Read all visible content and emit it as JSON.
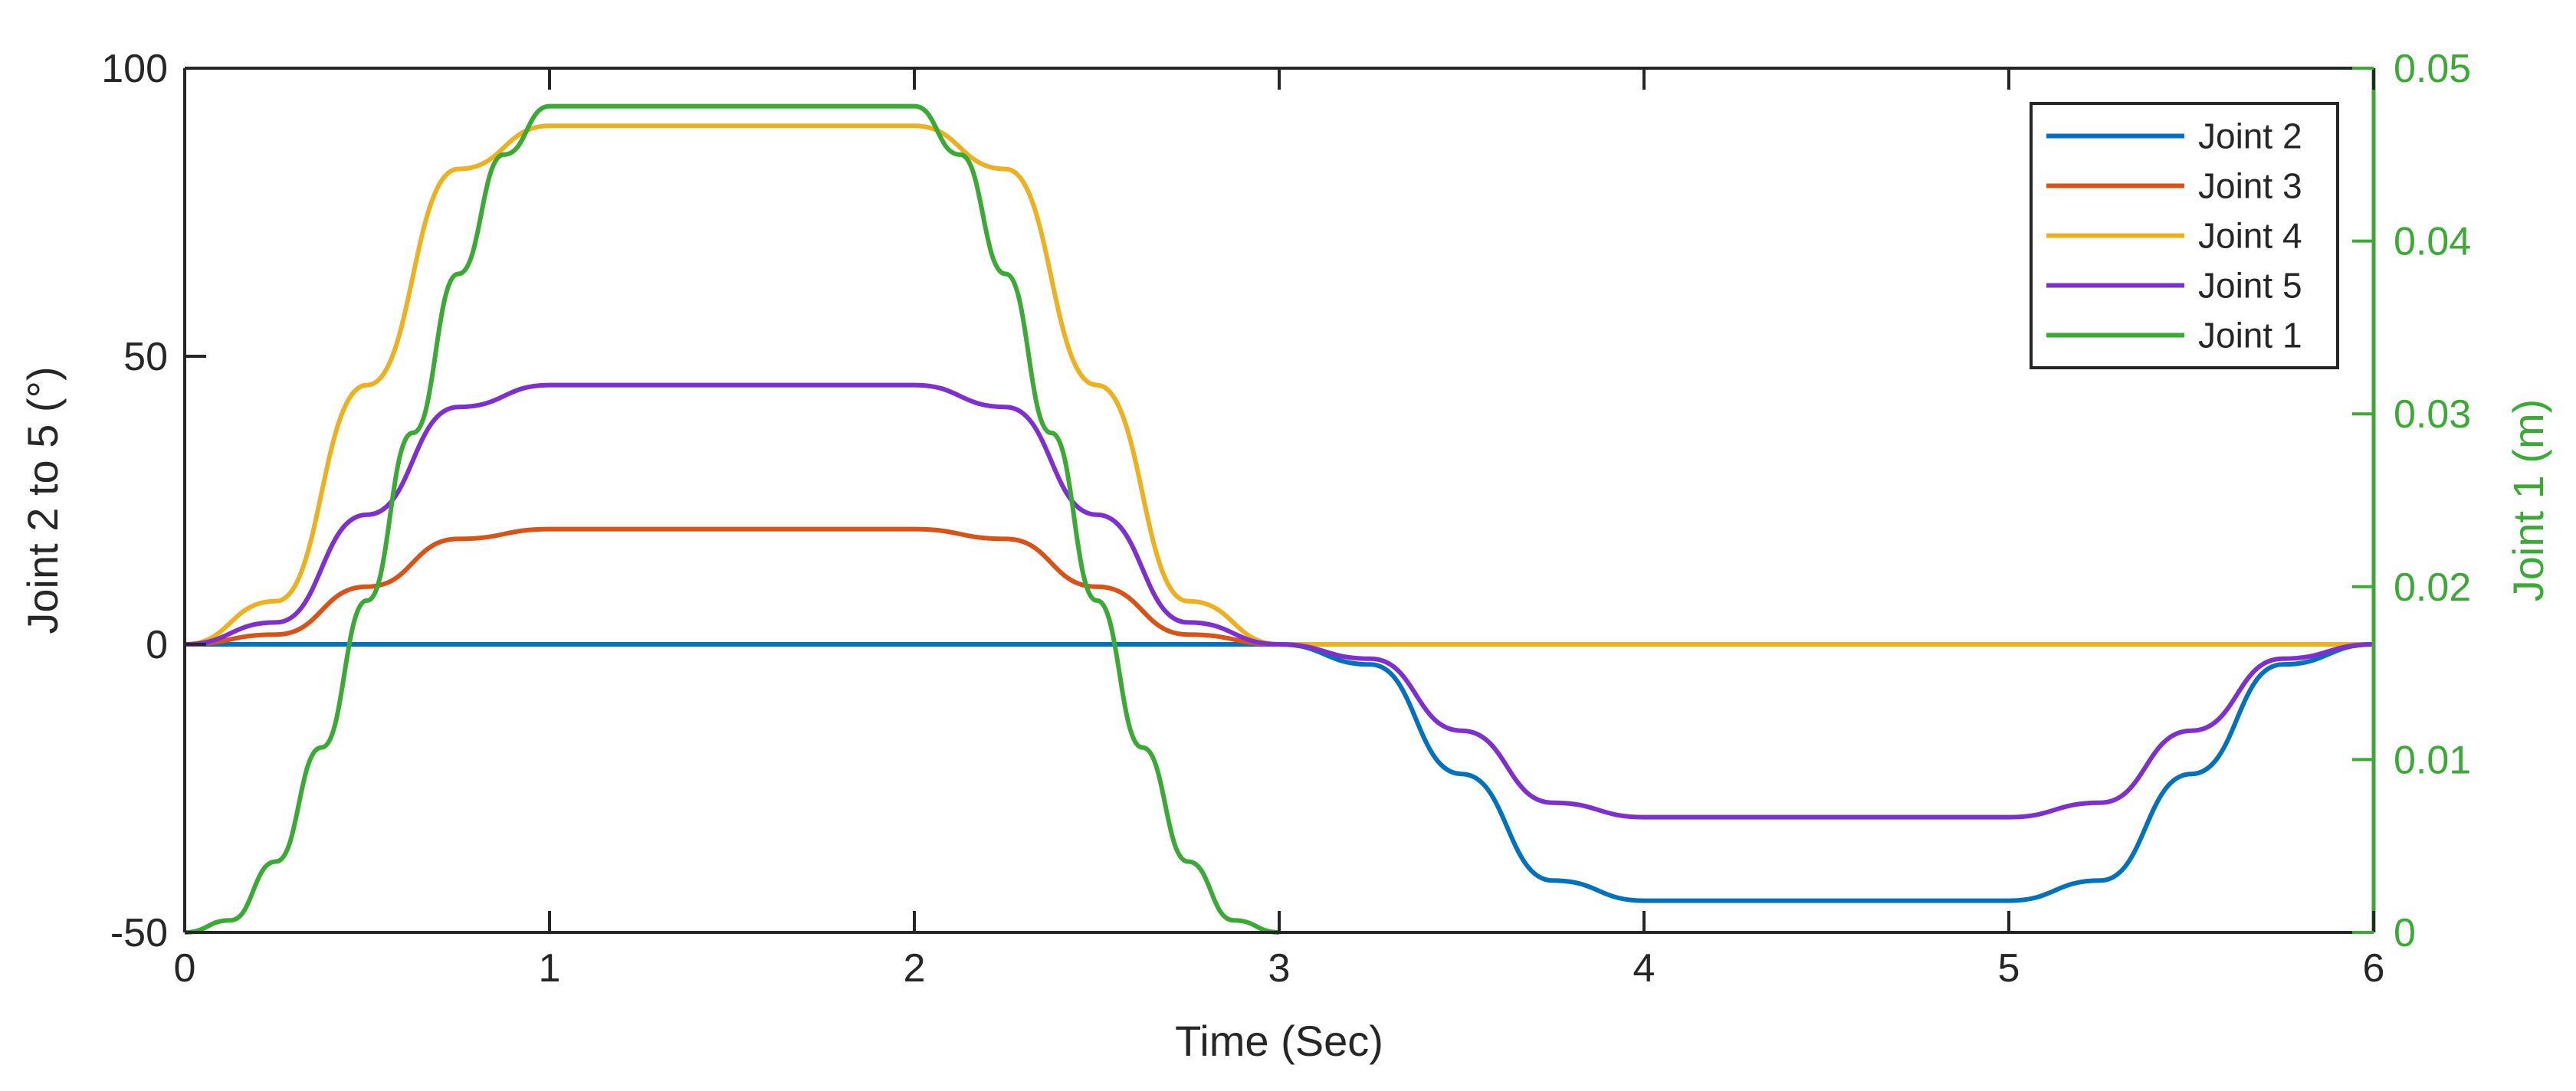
{
  "chart_data": {
    "type": "line",
    "xlabel": "Time (Sec)",
    "ylabel_left": "Joint 2 to 5 (°)",
    "ylabel_right": "Joint 1 (m)",
    "xlim": [
      0,
      6
    ],
    "ylim_left": [
      -50,
      100
    ],
    "ylim_right": [
      0,
      0.05
    ],
    "xticks": [
      0,
      1,
      2,
      3,
      4,
      5,
      6
    ],
    "xtick_labels": [
      "0",
      "1",
      "2",
      "3",
      "4",
      "5",
      "6"
    ],
    "yticks_left": [
      -50,
      0,
      50,
      100
    ],
    "ytick_labels_left": [
      "-50",
      "0",
      "50",
      "100"
    ],
    "yticks_right": [
      0,
      0.01,
      0.02,
      0.03,
      0.04,
      0.05
    ],
    "ytick_labels_right": [
      "0",
      "0.01",
      "0.02",
      "0.03",
      "0.04",
      "0.05"
    ],
    "grid": false,
    "legend_position": "top-right",
    "colors": {
      "axes": "#262626",
      "right_axis": "#3aaa35"
    },
    "series": [
      {
        "name": "Joint 2",
        "axis": "left",
        "color": "#0072bd",
        "x": [
          0,
          0.5,
          1,
          1.5,
          2,
          2.5,
          3,
          3.25,
          3.5,
          3.75,
          4,
          4.5,
          5,
          5.25,
          5.5,
          5.75,
          6
        ],
        "y": [
          0,
          0,
          0,
          0,
          0,
          0,
          0,
          -3.5,
          -22.5,
          -41,
          -44.5,
          -44.5,
          -44.5,
          -41,
          -22.5,
          -3.5,
          0
        ]
      },
      {
        "name": "Joint 3",
        "axis": "left",
        "color": "#d95319",
        "x": [
          0,
          0.25,
          0.5,
          0.75,
          1,
          1.5,
          2,
          2.25,
          2.5,
          2.75,
          3,
          4,
          5,
          6
        ],
        "y": [
          0,
          1.7,
          10,
          18.3,
          20,
          20,
          20,
          18.3,
          10,
          1.7,
          0,
          0,
          0,
          0
        ]
      },
      {
        "name": "Joint 4",
        "axis": "left",
        "color": "#edb120",
        "x": [
          0,
          0.25,
          0.5,
          0.75,
          1,
          1.5,
          2,
          2.25,
          2.5,
          2.75,
          3,
          4,
          5,
          6
        ],
        "y": [
          0,
          7.5,
          45,
          82.5,
          90,
          90,
          90,
          82.5,
          45,
          7.5,
          0,
          0,
          0,
          0
        ]
      },
      {
        "name": "Joint 5",
        "axis": "left",
        "color": "#7e2fd0",
        "x": [
          0,
          0.25,
          0.5,
          0.75,
          1,
          1.5,
          2,
          2.25,
          2.5,
          2.75,
          3,
          3.25,
          3.5,
          3.75,
          4,
          4.5,
          5,
          5.25,
          5.5,
          5.75,
          6
        ],
        "y": [
          0,
          3.8,
          22.5,
          41.2,
          45,
          45,
          45,
          41.2,
          22.5,
          3.8,
          0,
          -2.5,
          -15,
          -27.5,
          -30,
          -30,
          -30,
          -27.5,
          -15,
          -2.5,
          0
        ]
      },
      {
        "name": "Joint 1",
        "axis": "right",
        "color": "#3aaa35",
        "x": [
          0,
          0.125,
          0.25,
          0.375,
          0.5,
          0.625,
          0.75,
          0.875,
          1,
          1.5,
          2,
          2.125,
          2.25,
          2.375,
          2.5,
          2.625,
          2.75,
          2.875,
          3
        ],
        "y": [
          0,
          0.0007,
          0.0041,
          0.0107,
          0.0192,
          0.0289,
          0.0381,
          0.045,
          0.0478,
          0.0478,
          0.0478,
          0.045,
          0.0381,
          0.0289,
          0.0192,
          0.0107,
          0.0041,
          0.0007,
          0
        ]
      }
    ]
  }
}
